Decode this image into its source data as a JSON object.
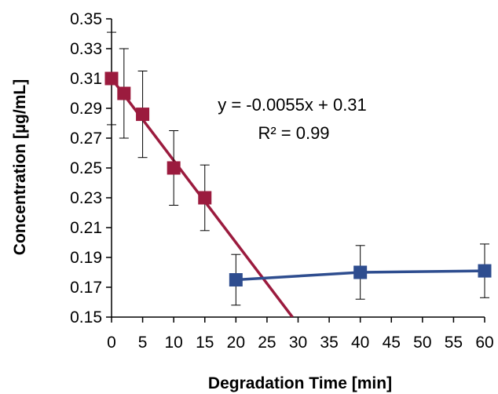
{
  "chart_data": {
    "type": "scatter",
    "title": "",
    "xlabel": "Degradation Time [min]",
    "ylabel": "Concentration  [µg/mL]",
    "x_tick_labels": [
      "0",
      "5",
      "10",
      "15",
      "20",
      "25",
      "30",
      "35",
      "40",
      "45",
      "50",
      "55",
      "60"
    ],
    "y_tick_labels": [
      "0.15",
      "0.17",
      "0.19",
      "0.21",
      "0.23",
      "0.25",
      "0.27",
      "0.29",
      "0.31",
      "0.33",
      "0.35"
    ],
    "xlim": [
      0,
      60
    ],
    "ylim": [
      0.15,
      0.35
    ],
    "grid": false,
    "annotations": [
      "y = -0.0055x + 0.31",
      "R² = 0.99"
    ],
    "series": [
      {
        "color": "#9b1b3e",
        "x": [
          0,
          2,
          5,
          10,
          15
        ],
        "y": [
          0.31,
          0.3,
          0.286,
          0.25,
          0.23
        ],
        "error": [
          0.031,
          0.03,
          0.029,
          0.025,
          0.022
        ],
        "trendline": {
          "slope": -0.0055,
          "intercept": 0.31,
          "x_range": [
            0,
            29.1
          ]
        }
      },
      {
        "color": "#2e4d8f",
        "x": [
          20,
          40,
          60
        ],
        "y": [
          0.175,
          0.18,
          0.181
        ],
        "error": [
          0.017,
          0.018,
          0.018
        ],
        "trendline": {
          "x_range": [
            20,
            60
          ]
        }
      }
    ]
  }
}
